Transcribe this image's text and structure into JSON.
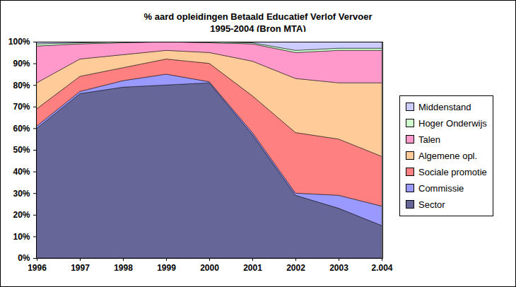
{
  "chart_data": {
    "type": "area",
    "title": "% aard opleidingen Betaald Educatief Verlof Vervoer",
    "subtitle": "1995-2004 (Bron MTA)",
    "categories": [
      "1996",
      "1997",
      "1998",
      "1999",
      "2000",
      "2001",
      "2002",
      "2003",
      "2.004"
    ],
    "stacked": true,
    "grid": false,
    "legend": "right",
    "ylim": [
      0,
      100
    ],
    "yticks": [
      {
        "value": 0,
        "label": "0%"
      },
      {
        "value": 10,
        "label": "10%"
      },
      {
        "value": 20,
        "label": "20%"
      },
      {
        "value": 30,
        "label": "30%"
      },
      {
        "value": 40,
        "label": "40%"
      },
      {
        "value": 50,
        "label": "50%"
      },
      {
        "value": 60,
        "label": "60%"
      },
      {
        "value": 70,
        "label": "70%"
      },
      {
        "value": 80,
        "label": "80%"
      },
      {
        "value": 90,
        "label": "90%"
      },
      {
        "value": 100,
        "label": "100%"
      }
    ],
    "series": [
      {
        "name": "Sector",
        "color": "#666699",
        "values": [
          60,
          76,
          79,
          80,
          81,
          57,
          29,
          23,
          15
        ]
      },
      {
        "name": "Commissie",
        "color": "#9999ff",
        "values": [
          1,
          1,
          3,
          5,
          0.5,
          1,
          1,
          6,
          9
        ]
      },
      {
        "name": "Sociale promotie",
        "color": "#ff8080",
        "values": [
          8,
          7,
          6,
          7,
          8.5,
          17,
          28,
          26,
          23
        ]
      },
      {
        "name": "Algemene opl.",
        "color": "#ffcc99",
        "values": [
          12,
          8,
          6,
          4,
          5,
          16,
          25,
          26,
          34
        ]
      },
      {
        "name": "Talen",
        "color": "#ff99cc",
        "values": [
          17,
          7,
          5.5,
          4,
          4.5,
          8,
          12,
          15,
          15
        ]
      },
      {
        "name": "Hoger Onderwijs",
        "color": "#ccffcc",
        "values": [
          1,
          0.5,
          0.5,
          0,
          0.5,
          0.5,
          1,
          1,
          1
        ]
      },
      {
        "name": "Middenstand",
        "color": "#ccccff",
        "values": [
          1,
          0.5,
          0,
          0,
          0,
          0.5,
          4,
          3,
          3
        ]
      }
    ]
  }
}
